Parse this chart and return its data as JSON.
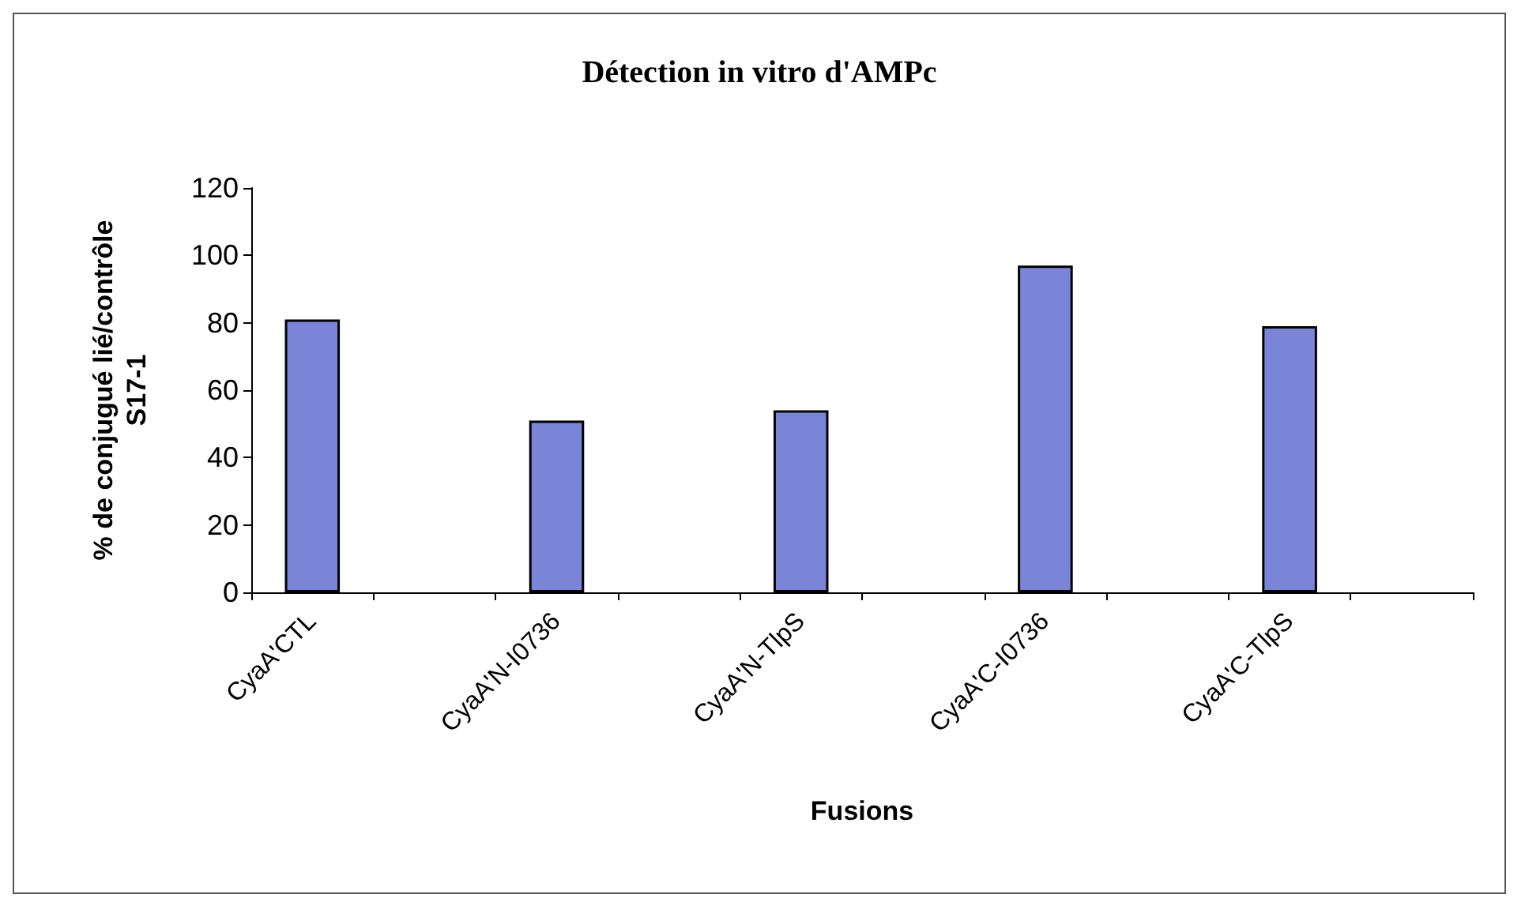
{
  "chart_data": {
    "type": "bar",
    "title": "Détection in vitro d'AMPc",
    "xlabel": "Fusions",
    "ylabel": "% de conjugué lié/contrôle\nS17-1",
    "categories": [
      "CyaA'CTL",
      null,
      "CyaA'N-I0736",
      null,
      "CyaA'N-TlpS",
      null,
      "CyaA'C-I0736",
      null,
      "CyaA'C-TlpS",
      null
    ],
    "values": [
      81,
      null,
      51,
      null,
      54,
      null,
      97,
      null,
      79,
      null
    ],
    "color": "#7b85d8",
    "ylim": [
      0,
      120
    ],
    "yticks": [
      0,
      20,
      40,
      60,
      80,
      100,
      120
    ],
    "grid": false
  }
}
